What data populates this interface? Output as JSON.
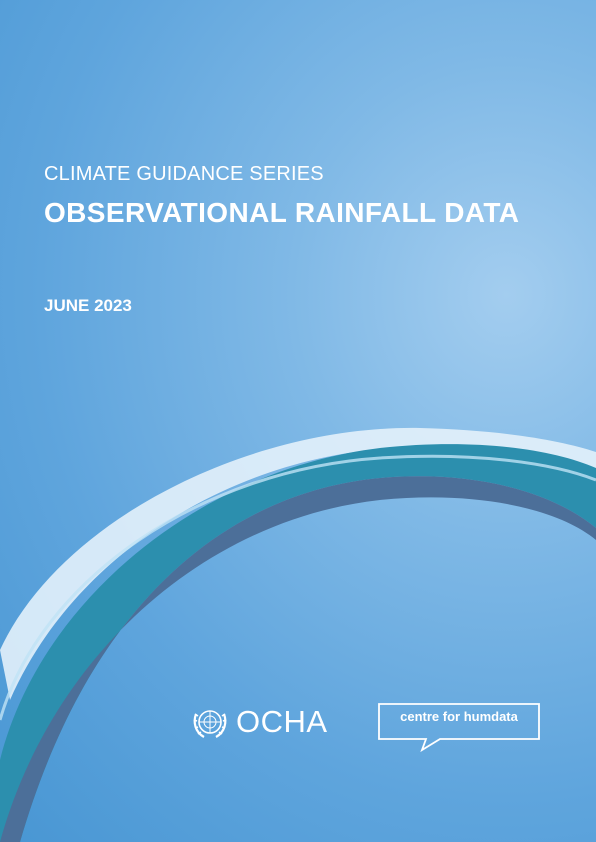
{
  "cover": {
    "series": "CLIMATE GUIDANCE SERIES",
    "title": "OBSERVATIONAL RAINFALL DATA",
    "date": "JUNE 2023"
  },
  "logos": {
    "ocha": {
      "name": "OCHA",
      "emblem_icon": "un-emblem-icon"
    },
    "humdata": {
      "name": "centre for humdata",
      "icon": "speech-bubble-icon"
    }
  },
  "colors": {
    "background": "#5fa5dd",
    "text": "#ffffff",
    "swoosh_teal": "#2c8fae",
    "swoosh_dark": "#4c6f99",
    "swoosh_light": "#e3f1fb"
  }
}
